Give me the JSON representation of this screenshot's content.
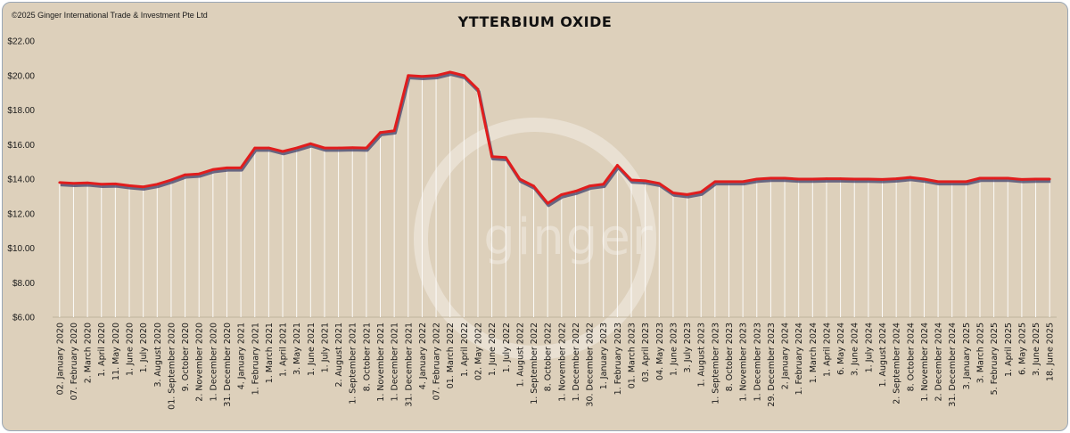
{
  "header": {
    "copyright": "©2025 Ginger International Trade & Investment Pte Ltd"
  },
  "watermark": {
    "text": "ginger"
  },
  "chart_data": {
    "type": "line",
    "title": "YTTERBIUM OXIDE",
    "xlabel": "",
    "ylabel": "",
    "ylim": [
      6,
      22
    ],
    "yticks": [
      "$6.00",
      "$8.00",
      "$10.00",
      "$12.00",
      "$14.00",
      "$16.00",
      "$18.00",
      "$20.00",
      "$22.00"
    ],
    "grid": false,
    "drop_lines": true,
    "colors": {
      "line": "#e11d1d",
      "shadow": "#4a4a72",
      "droplines": "#ffffff"
    },
    "categories": [
      "02. January 2020",
      "07. February 2020",
      "2. March 2020",
      "1. April 2020",
      "11. May 2020",
      "1. June 2020",
      "1. July 2020",
      "3. August 2020",
      "01. September 2020",
      "9. October 2020",
      "2. November 2020",
      "1. December 2020",
      "31. December 2020",
      "4. January 2021",
      "1. February 2021",
      "1. March 2021",
      "1. April 2021",
      "3. May 2021",
      "1. June 2021",
      "1. July 2021",
      "2. August 2021",
      "1. September 2021",
      "8. October 2021",
      "1. November 2021",
      "1. December 2021",
      "31. December 2021",
      "4. January 2022",
      "07. February 2022",
      "01. March 2022",
      "1. April 2022",
      "02. May 2022",
      "1. June 2022",
      "1. July 2022",
      "1. August 2022",
      "1. September 2022",
      "8. October 2022",
      "1. November 2022",
      "1. December 2022",
      "30. December 2022",
      "1. January 2023",
      "1. February 2023",
      "01. March 2023",
      "03. April 2023",
      "04. May 2023",
      "1. June 2023",
      "3. July 2023",
      "1. August 2023",
      "1. September 2023",
      "8. October 2023",
      "1. November 2023",
      "1. December 2023",
      "29. December 2023",
      "2. January 2024",
      "1. February 2024",
      "1. March 2024",
      "1. April 2024",
      "6. May 2024",
      "3. June 2024",
      "1. July 2024",
      "1. August 2024",
      "2. September 2024",
      "8. October 2024",
      "1. November 2024",
      "2. December 2024",
      "31. December 2024",
      "3. January 2025",
      "3. March 2025",
      "5. February 2025",
      "1. April 2025",
      "6. May 2025",
      "3. June 2025",
      "18. June 2025"
    ],
    "series": [
      {
        "values": [
          13.8,
          13.75,
          13.78,
          13.7,
          13.72,
          13.62,
          13.55,
          13.7,
          13.95,
          14.25,
          14.3,
          14.55,
          14.65,
          14.65,
          15.8,
          15.8,
          15.6,
          15.8,
          16.05,
          15.8,
          15.8,
          15.82,
          15.8,
          16.7,
          16.8,
          20.0,
          19.95,
          20.0,
          20.2,
          20.0,
          19.2,
          15.3,
          15.25,
          14.0,
          13.6,
          12.6,
          13.1,
          13.3,
          13.6,
          13.7,
          14.8,
          13.95,
          13.9,
          13.75,
          13.2,
          13.1,
          13.25,
          13.85,
          13.85,
          13.85,
          14.0,
          14.05,
          14.05,
          14.0,
          14.0,
          14.02,
          14.02,
          14.0,
          14.0,
          13.98,
          14.02,
          14.1,
          14.0,
          13.85,
          13.85,
          13.85,
          14.05,
          14.05,
          14.05,
          13.98,
          14.0,
          14.0
        ]
      }
    ]
  }
}
